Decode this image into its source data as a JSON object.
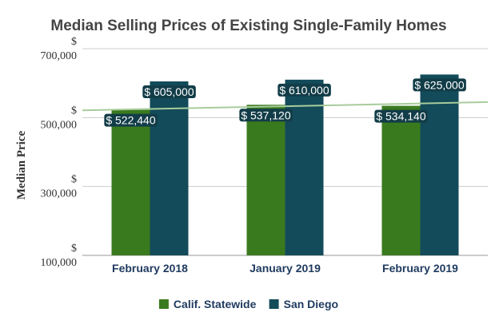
{
  "chart_data": {
    "type": "bar",
    "title": "Median Selling Prices of Existing Single-Family Homes",
    "ylabel": "Median Price",
    "xlabel": "",
    "categories": [
      "February 2018",
      "January 2019",
      "February 2019"
    ],
    "series": [
      {
        "name": "Calif. Statewide",
        "color": "#3a7a1f",
        "values": [
          522440,
          537120,
          534140
        ],
        "labels": [
          "$ 522,440",
          "$ 537,120",
          "$ 534,140"
        ]
      },
      {
        "name": "San Diego",
        "color": "#134b5a",
        "values": [
          605000,
          610000,
          625000
        ],
        "labels": [
          "$ 605,000",
          "$ 610,000",
          "$ 625,000"
        ]
      }
    ],
    "yticks": [
      {
        "value": 100000,
        "line1": "$",
        "line2": "100,000"
      },
      {
        "value": 300000,
        "line1": "$",
        "line2": "300,000"
      },
      {
        "value": 500000,
        "line1": "$",
        "line2": "500,000"
      },
      {
        "value": 700000,
        "line1": "$",
        "line2": "700,000"
      }
    ],
    "ylim": [
      100000,
      700000
    ],
    "trendline": {
      "color": "#a8cc9c",
      "start": 521000,
      "end": 545000
    },
    "grid": true,
    "legend": "bottom"
  }
}
